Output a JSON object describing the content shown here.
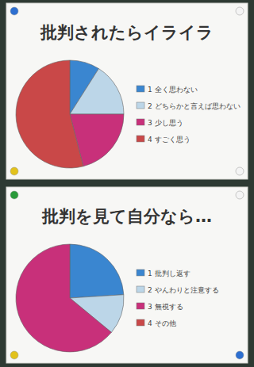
{
  "chart_data": [
    {
      "type": "pie",
      "title": "批判されたらイライラ",
      "categories": [
        "1 全く思わない",
        "2 どちらかと言えば思わない",
        "3 少し思う",
        "4 すごく思う"
      ],
      "values": [
        9,
        16,
        21,
        54
      ],
      "colors": [
        "#3a86d0",
        "#bcd6e8",
        "#c8307a",
        "#c94848"
      ],
      "legend": "right"
    },
    {
      "type": "pie",
      "title": "批判を見て自分なら…",
      "categories": [
        "1 批判し返す",
        "2 やんわりと注意する",
        "3 無視する",
        "4 その他"
      ],
      "values": [
        24,
        12,
        64,
        0
      ],
      "colors": [
        "#3a86d0",
        "#bcd6e8",
        "#c8307a",
        "#c94848"
      ],
      "legend": "right"
    }
  ]
}
